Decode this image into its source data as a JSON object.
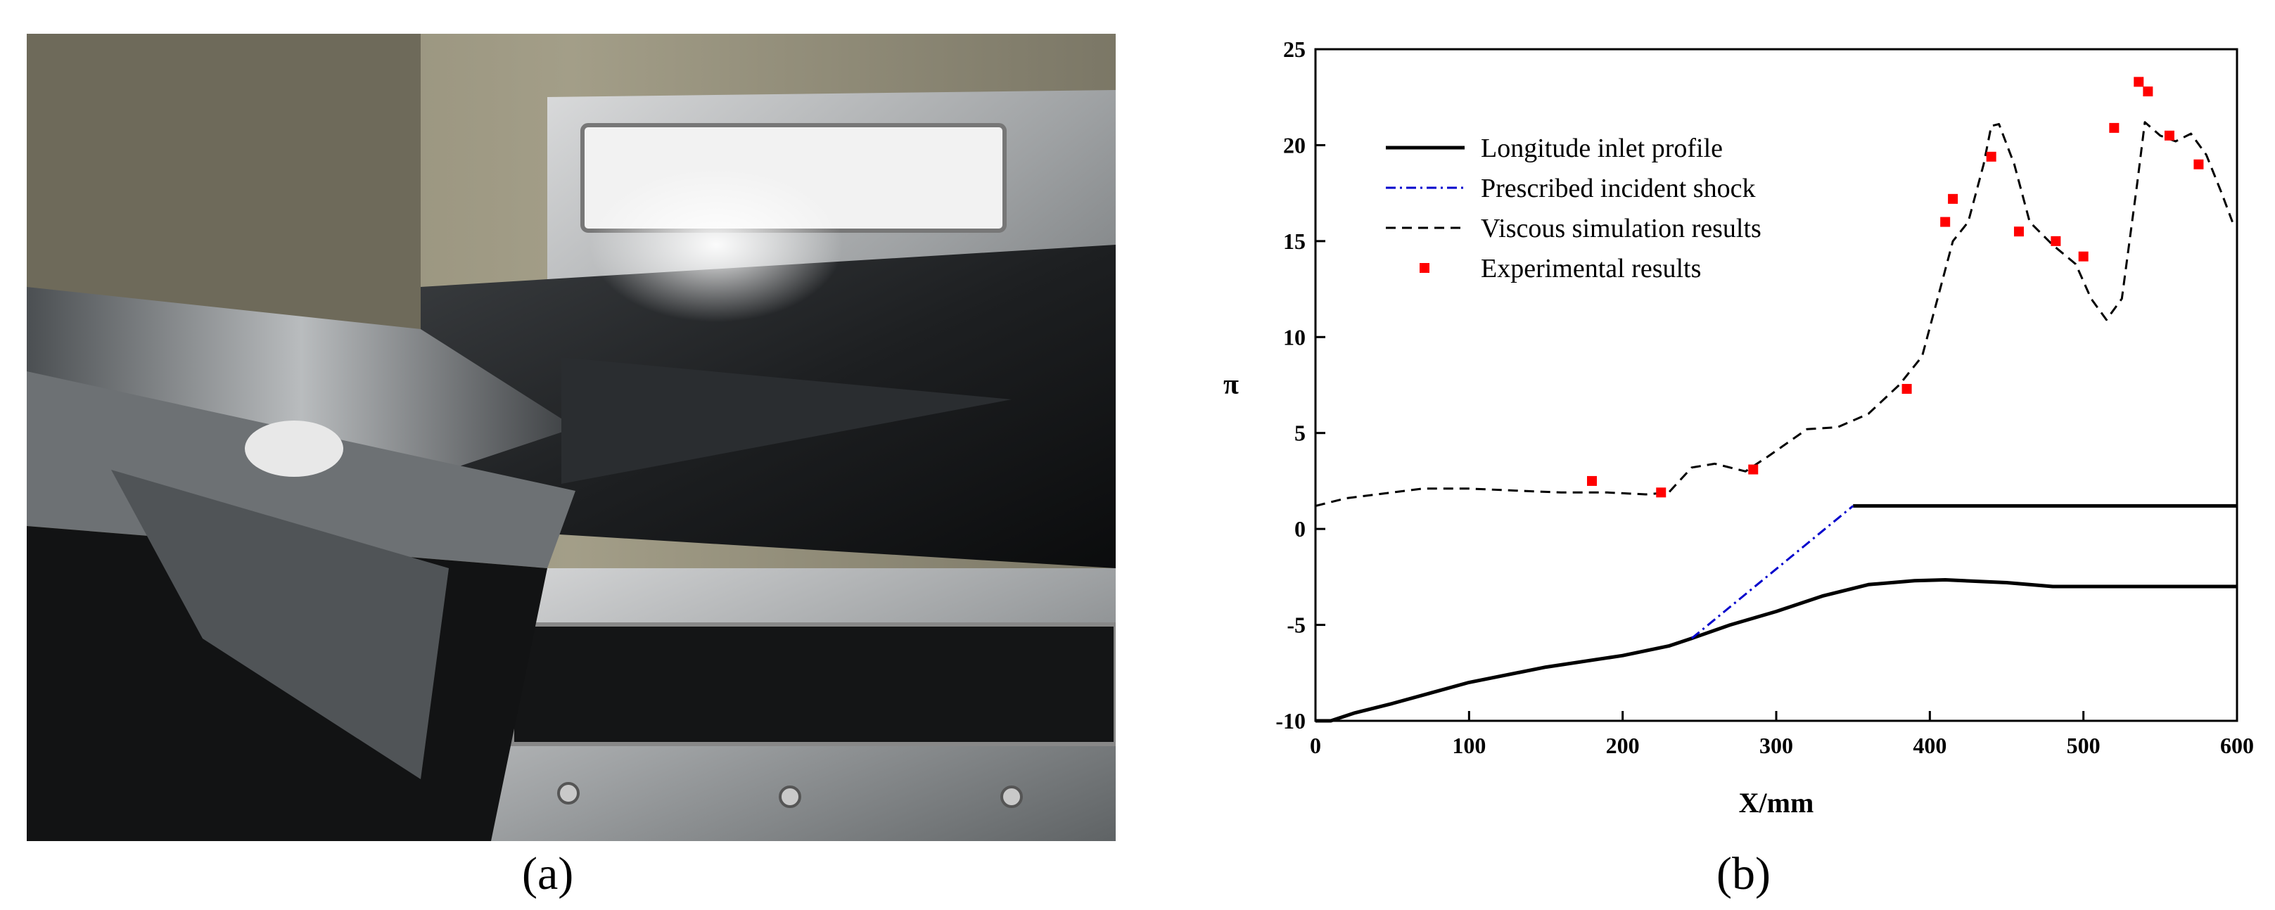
{
  "panels": {
    "a_label": "(a)",
    "b_label": "(b)"
  },
  "colors": {
    "profile": "#000000",
    "shock": "#0000cc",
    "viscous": "#000000",
    "experimental": "#ff0000"
  },
  "chart_data": {
    "type": "line",
    "xlabel": "X/mm",
    "ylabel": "π",
    "xlim": [
      0,
      600
    ],
    "ylim": [
      -10,
      25
    ],
    "xticks": [
      0,
      100,
      200,
      300,
      400,
      500,
      600
    ],
    "yticks": [
      -10,
      -5,
      0,
      5,
      10,
      15,
      20,
      25
    ],
    "grid": false,
    "legend_position": "top-left",
    "series": [
      {
        "name": "Longitude inlet profile",
        "style": "solid",
        "segments": [
          [
            [
              0,
              -10.0
            ],
            [
              10,
              -10.0
            ],
            [
              25,
              -9.6
            ],
            [
              50,
              -9.1
            ],
            [
              100,
              -8.0
            ],
            [
              150,
              -7.2
            ],
            [
              200,
              -6.6
            ],
            [
              230,
              -6.1
            ],
            [
              245,
              -5.7
            ],
            [
              270,
              -5.0
            ],
            [
              300,
              -4.3
            ],
            [
              330,
              -3.5
            ],
            [
              360,
              -2.9
            ],
            [
              390,
              -2.7
            ],
            [
              410,
              -2.65
            ],
            [
              450,
              -2.8
            ],
            [
              480,
              -3.0
            ],
            [
              600,
              -3.0
            ]
          ],
          [
            [
              350,
              1.2
            ],
            [
              600,
              1.2
            ]
          ]
        ]
      },
      {
        "name": "Prescribed incident shock",
        "style": "dash-dot",
        "segments": [
          [
            [
              245,
              -5.7
            ],
            [
              350,
              1.2
            ]
          ]
        ]
      },
      {
        "name": "Viscous simulation results",
        "style": "dashed",
        "segments": [
          [
            [
              0,
              1.2
            ],
            [
              20,
              1.6
            ],
            [
              40,
              1.8
            ],
            [
              70,
              2.1
            ],
            [
              100,
              2.1
            ],
            [
              130,
              2.0
            ],
            [
              160,
              1.9
            ],
            [
              190,
              1.9
            ],
            [
              215,
              1.8
            ],
            [
              230,
              1.9
            ],
            [
              245,
              3.2
            ],
            [
              260,
              3.4
            ],
            [
              280,
              3.0
            ],
            [
              295,
              3.8
            ],
            [
              320,
              5.2
            ],
            [
              340,
              5.3
            ],
            [
              360,
              6.0
            ],
            [
              380,
              7.5
            ],
            [
              395,
              9.0
            ],
            [
              405,
              12.0
            ],
            [
              415,
              15.0
            ],
            [
              425,
              16.0
            ],
            [
              435,
              19.0
            ],
            [
              440,
              21.0
            ],
            [
              445,
              21.1
            ],
            [
              455,
              19.0
            ],
            [
              465,
              16.0
            ],
            [
              480,
              14.8
            ],
            [
              495,
              13.8
            ],
            [
              505,
              12.0
            ],
            [
              515,
              10.9
            ],
            [
              525,
              12.0
            ],
            [
              535,
              18.0
            ],
            [
              540,
              21.2
            ],
            [
              550,
              20.5
            ],
            [
              560,
              20.2
            ],
            [
              570,
              20.6
            ],
            [
              580,
              19.5
            ],
            [
              590,
              17.5
            ],
            [
              597,
              16.0
            ]
          ]
        ]
      },
      {
        "name": "Experimental results",
        "style": "markers",
        "points": [
          [
            180,
            2.5
          ],
          [
            225,
            1.9
          ],
          [
            285,
            3.1
          ],
          [
            385,
            7.3
          ],
          [
            410,
            16.0
          ],
          [
            415,
            17.2
          ],
          [
            440,
            19.4
          ],
          [
            458,
            15.5
          ],
          [
            482,
            15.0
          ],
          [
            500,
            14.2
          ],
          [
            520,
            20.9
          ],
          [
            536,
            23.3
          ],
          [
            542,
            22.8
          ],
          [
            556,
            20.5
          ],
          [
            575,
            19.0
          ]
        ]
      }
    ]
  }
}
